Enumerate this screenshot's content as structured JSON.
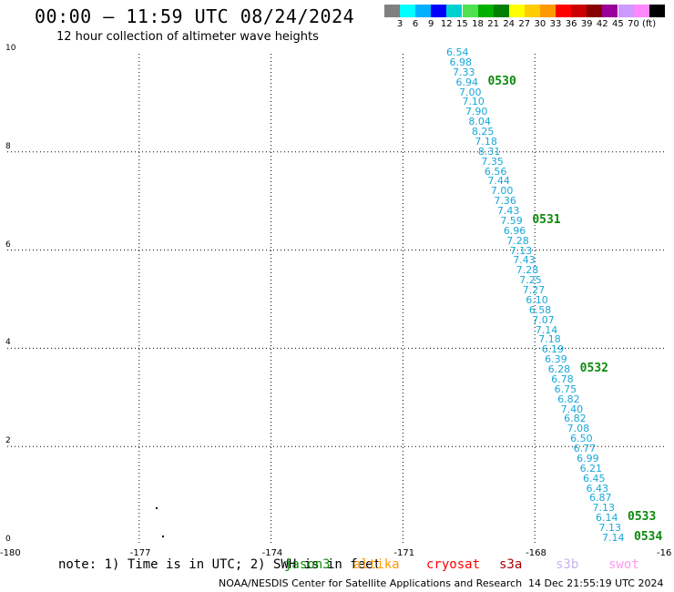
{
  "title": "00:00 – 11:59 UTC 08/24/2024",
  "subtitle": "12 hour collection of altimeter wave heights",
  "colorbar": {
    "swatches": [
      "#808080",
      "#00ffff",
      "#00b0ff",
      "#0000ff",
      "#00d0d0",
      "#50e050",
      "#00b000",
      "#008000",
      "#ffff00",
      "#ffcc00",
      "#ff9900",
      "#ff0000",
      "#cc0000",
      "#880000",
      "#990099",
      "#cc99ff",
      "#ff88ff",
      "#000000"
    ],
    "labels": [
      "3",
      "6",
      "9",
      "12",
      "15",
      "18",
      "21",
      "24",
      "27",
      "30",
      "33",
      "36",
      "39",
      "42",
      "45",
      "70",
      "(ft)"
    ]
  },
  "axes": {
    "x_ticks": [
      "-180",
      "-177",
      "-174",
      "-171",
      "-168",
      "-16"
    ],
    "y_ticks": [
      "0",
      "2",
      "4",
      "6",
      "8",
      "10"
    ],
    "lon_range": [
      -180,
      -165
    ],
    "lat_range": [
      0,
      10
    ]
  },
  "wave_heights": [
    "6.54",
    "6.98",
    "7.33",
    "6.94",
    "7.00",
    "7.10",
    "7.90",
    "8.04",
    "8.25",
    "7.18",
    "8.31",
    "7.35",
    "6.56",
    "7.44",
    "7.00",
    "7.36",
    "7.43",
    "7.59",
    "6.96",
    "7.28",
    "7.13",
    "7.43",
    "7.28",
    "7.25",
    "7.27",
    "6.10",
    "6.58",
    "7.07",
    "7.14",
    "7.18",
    "6.19",
    "6.39",
    "6.28",
    "6.78",
    "6.75",
    "6.82",
    "7.40",
    "6.82",
    "7.08",
    "6.50",
    "6.77",
    "6.99",
    "6.21",
    "6.45",
    "6.43",
    "6.87",
    "7.13",
    "6.14",
    "7.13",
    "7.14"
  ],
  "time_labels": [
    {
      "text": "0530",
      "index": 3
    },
    {
      "text": "0531",
      "index": 17
    },
    {
      "text": "0532",
      "index": 32
    },
    {
      "text": "0533",
      "index": 47
    },
    {
      "text": "0534",
      "index": 49
    }
  ],
  "note": "note:  1) Time is in UTC; 2) SWH is in feet",
  "satellites": [
    {
      "name": "jason3",
      "color": "#0c8a0c"
    },
    {
      "name": "altika",
      "color": "#ff9900"
    },
    {
      "name": "cryosat",
      "color": "#ff0000"
    },
    {
      "name": "s3a",
      "color": "#aa0000"
    },
    {
      "name": "s3b",
      "color": "#c8b4f0"
    },
    {
      "name": "swot",
      "color": "#ff99ee"
    }
  ],
  "footer": "NOAA/NESDIS Center for Satellite Applications and Research",
  "timestamp": "14 Dec 21:55:19 UTC 2024"
}
